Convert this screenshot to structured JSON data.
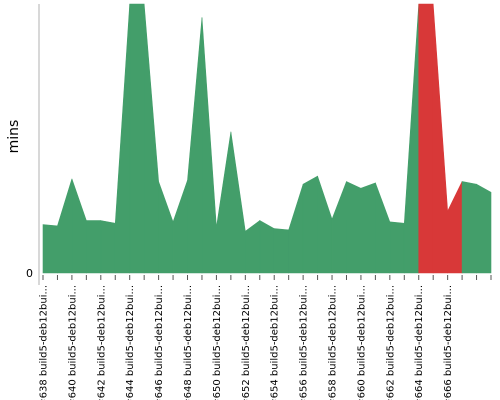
{
  "chart_data": {
    "type": "area",
    "title": "",
    "xlabel": "",
    "ylabel": "mins",
    "y_ticks": [
      "0"
    ],
    "ylim": [
      0,
      100
    ],
    "grid": false,
    "colors": {
      "success": "#439e6a",
      "failure": "#d83838"
    },
    "builds": [
      {
        "label": "#638 build5-deb12bui...",
        "value": 18,
        "status": "success"
      },
      {
        "label": "",
        "value": 17.5,
        "status": "success"
      },
      {
        "label": "#640 build5-deb12bui...",
        "value": 35,
        "status": "success"
      },
      {
        "label": "",
        "value": 19.5,
        "status": "success"
      },
      {
        "label": "#642 build5-deb12bui...",
        "value": 19.5,
        "status": "success"
      },
      {
        "label": "",
        "value": 18.5,
        "status": "success"
      },
      {
        "label": "#644 build5-deb12bui...",
        "value": 100,
        "status": "success"
      },
      {
        "label": "",
        "value": 100,
        "status": "success"
      },
      {
        "label": "#646 build5-deb12bui...",
        "value": 34,
        "status": "success"
      },
      {
        "label": "",
        "value": 19,
        "status": "success"
      },
      {
        "label": "#648 build5-deb12bui...",
        "value": 34.5,
        "status": "success"
      },
      {
        "label": "",
        "value": 95,
        "status": "success"
      },
      {
        "label": "#650 build5-deb12bui...",
        "value": 17,
        "status": "success"
      },
      {
        "label": "",
        "value": 52.5,
        "status": "success"
      },
      {
        "label": "#652 build5-deb12bui...",
        "value": 15.5,
        "status": "success"
      },
      {
        "label": "",
        "value": 19.5,
        "status": "success"
      },
      {
        "label": "#654 build5-deb12bui...",
        "value": 16.5,
        "status": "success"
      },
      {
        "label": "",
        "value": 16,
        "status": "success"
      },
      {
        "label": "#656 build5-deb12bui...",
        "value": 33,
        "status": "success"
      },
      {
        "label": "",
        "value": 36,
        "status": "success"
      },
      {
        "label": "#658 build5-deb12bui...",
        "value": 20,
        "status": "success"
      },
      {
        "label": "",
        "value": 34,
        "status": "success"
      },
      {
        "label": "#660 build5-deb12bui...",
        "value": 31.5,
        "status": "success"
      },
      {
        "label": "",
        "value": 33.5,
        "status": "success"
      },
      {
        "label": "#662 build5-deb12bui...",
        "value": 19,
        "status": "success"
      },
      {
        "label": "",
        "value": 18.5,
        "status": "success"
      },
      {
        "label": "#664 build5-deb12bui...",
        "value": 100,
        "status": "success"
      },
      {
        "label": "",
        "value": 100,
        "status": "failure"
      },
      {
        "label": "#666 build5-deb12bui...",
        "value": 23,
        "status": "failure"
      },
      {
        "label": "",
        "value": 34,
        "status": "failure"
      },
      {
        "label": "",
        "value": 33,
        "status": "success"
      },
      {
        "label": "",
        "value": 30,
        "status": "success"
      }
    ]
  }
}
